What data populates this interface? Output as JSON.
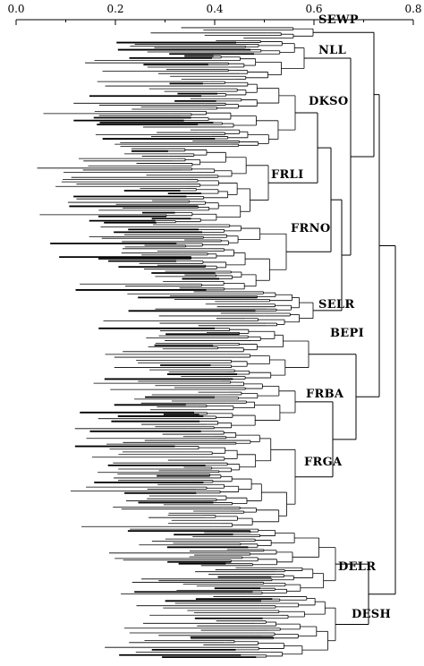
{
  "scale_axis": {
    "ticks": [
      {
        "value": 0.0,
        "label": "0.0"
      },
      {
        "value": 0.2,
        "label": "0.2"
      },
      {
        "value": 0.4,
        "label": "0.4"
      },
      {
        "value": 0.6,
        "label": "0.6"
      },
      {
        "value": 0.8,
        "label": "0.8"
      }
    ],
    "range": [
      0.0,
      0.8
    ]
  },
  "groups": [
    {
      "label": "SEWP"
    },
    {
      "label": "NLL"
    },
    {
      "label": "DKSO"
    },
    {
      "label": "FRLI"
    },
    {
      "label": "FRNO"
    },
    {
      "label": "SELR"
    },
    {
      "label": "BEPI"
    },
    {
      "label": "FRBA"
    },
    {
      "label": "FRGA"
    },
    {
      "label": "DELR"
    },
    {
      "label": "DESH"
    }
  ],
  "colors": {
    "line": "#000000",
    "background": "#ffffff"
  }
}
